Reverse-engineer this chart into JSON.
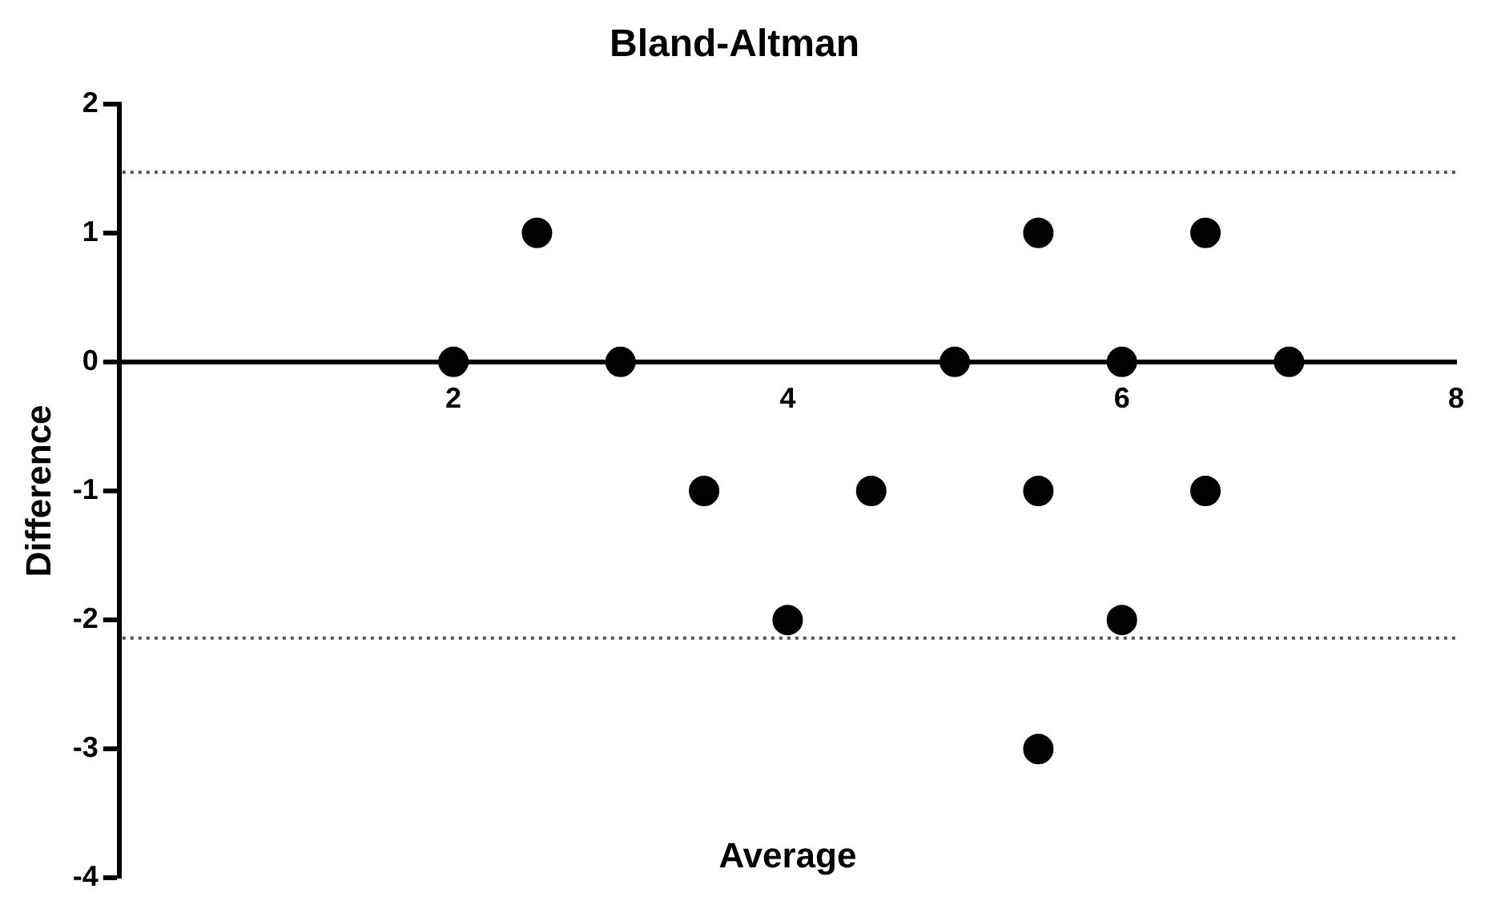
{
  "chart_data": {
    "type": "scatter",
    "title": "Bland-Altman",
    "xlabel": "Average",
    "ylabel": "Difference",
    "series": [
      {
        "color": "#000000",
        "x": [
          2,
          2.5,
          3,
          3.5,
          4,
          4.5,
          5,
          5.5,
          5.5,
          5.5,
          6,
          6,
          6.5,
          6.5,
          7
        ],
        "values": [
          0,
          1,
          0,
          -1,
          -2,
          -1,
          0,
          1,
          -1,
          -3,
          0,
          -2,
          1,
          -1,
          0
        ]
      }
    ],
    "xlim": [
      0,
      8
    ],
    "xticks": [
      2,
      4,
      6,
      8
    ],
    "ylim": [
      -4,
      2
    ],
    "yticks": [
      -4,
      -3,
      -2,
      -1,
      0,
      1,
      2
    ],
    "ref_lines": [
      {
        "axis": "y",
        "value": 1.47,
        "color": "#555555",
        "line_style": "dotted"
      },
      {
        "axis": "y",
        "value": -2.14,
        "color": "#555555",
        "line_style": "dotted"
      }
    ],
    "grid": false,
    "legend": false,
    "marker": "circle"
  }
}
